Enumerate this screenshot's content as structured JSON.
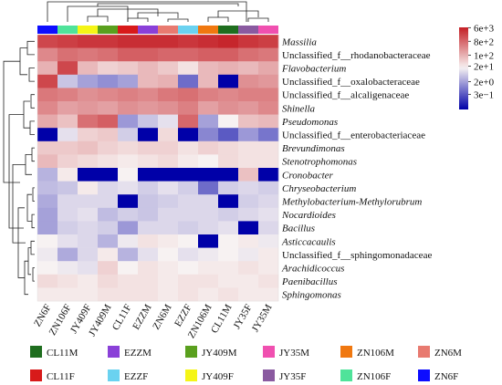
{
  "chart_data": {
    "type": "heatmap",
    "title": "",
    "xlabel": "",
    "ylabel": "",
    "columns": [
      "ZN6F",
      "ZN106F",
      "JY409F",
      "JY409M",
      "CL11F",
      "EZZM",
      "ZN6M",
      "EZZF",
      "ZN106M",
      "CL11M",
      "JY35F",
      "JY35M"
    ],
    "column_colors": [
      "#0d0dff",
      "#4fe39a",
      "#f5f516",
      "#5aa01e",
      "#d81a1a",
      "#8a40d8",
      "#e87a70",
      "#6ad2f0",
      "#f07810",
      "#1f6e1f",
      "#8a5aa0",
      "#f050b0"
    ],
    "rows": [
      "Massilia",
      "Unclassified_f__rhodanobacteraceae",
      "Flavobacterium",
      "Unclassified_f__oxalobacteraceae",
      "Unclassified_f__alcaligenaceae",
      "Shinella",
      "Pseudomonas",
      "Unclassified_f__enterobacteriaceae",
      "Brevundimonas",
      "Stenotrophomonas",
      "Cronobacter",
      "Chryseobacterium",
      "Methylobacterium-Methylorubrum",
      "Nocardioides",
      "Bacillus",
      "Asticcacaulis",
      "Unclassified_f__sphingomonadaceae",
      "Arachidicoccus",
      "Paenibacillus",
      "Sphingomonas"
    ],
    "values_log10": [
      [
        3.3,
        3.4,
        3.5,
        3.5,
        3.6,
        3.6,
        3.6,
        3.5,
        3.6,
        3.7,
        3.5,
        3.4
      ],
      [
        2.5,
        2.8,
        2.7,
        2.8,
        3.0,
        3.0,
        2.9,
        2.9,
        3.0,
        3.0,
        2.8,
        2.7
      ],
      [
        2.0,
        3.3,
        1.9,
        1.6,
        1.7,
        1.9,
        1.7,
        1.4,
        1.9,
        2.0,
        1.9,
        2.1
      ],
      [
        3.3,
        0.7,
        0.3,
        0.1,
        0.3,
        1.9,
        2.0,
        -0.3,
        1.9,
        -1.5,
        2.4,
        2.3
      ],
      [
        2.7,
        2.6,
        2.4,
        2.5,
        2.6,
        2.5,
        2.7,
        2.8,
        2.6,
        2.5,
        2.6,
        2.6
      ],
      [
        2.5,
        2.2,
        2.3,
        2.2,
        2.4,
        2.3,
        2.4,
        2.6,
        2.2,
        2.4,
        2.3,
        2.5
      ],
      [
        2.1,
        1.8,
        2.8,
        3.0,
        0.2,
        0.7,
        1.0,
        2.9,
        0.3,
        1.2,
        1.8,
        1.9
      ],
      [
        -1.5,
        1.0,
        1.6,
        1.7,
        0.8,
        -1.5,
        1.5,
        -1.5,
        0.0,
        -0.5,
        0.2,
        -0.2
      ],
      [
        1.7,
        1.7,
        1.8,
        1.6,
        1.5,
        1.6,
        1.6,
        1.4,
        1.6,
        1.5,
        1.4,
        1.4
      ],
      [
        1.9,
        1.6,
        1.5,
        1.4,
        1.3,
        1.4,
        1.5,
        1.3,
        1.2,
        1.5,
        1.4,
        1.4
      ],
      [
        0.5,
        1.3,
        -1.5,
        -1.5,
        1.2,
        -1.5,
        -1.5,
        -1.5,
        -1.5,
        -1.5,
        1.8,
        -1.5
      ],
      [
        0.6,
        0.7,
        1.3,
        0.9,
        1.0,
        0.8,
        1.0,
        0.8,
        -0.3,
        0.8,
        0.9,
        0.8
      ],
      [
        0.4,
        0.9,
        0.9,
        0.9,
        -1.5,
        0.7,
        0.8,
        0.9,
        0.9,
        -1.5,
        0.8,
        0.9
      ],
      [
        0.3,
        0.9,
        1.0,
        0.6,
        0.8,
        0.7,
        0.9,
        0.9,
        0.9,
        0.8,
        0.9,
        1.0
      ],
      [
        0.3,
        0.8,
        0.9,
        0.8,
        0.2,
        0.9,
        0.9,
        0.8,
        0.9,
        1.0,
        -1.5,
        0.9
      ],
      [
        1.2,
        1.0,
        0.9,
        0.5,
        1.1,
        1.4,
        1.3,
        1.2,
        -1.5,
        1.2,
        1.3,
        1.1
      ],
      [
        1.1,
        0.4,
        0.9,
        1.3,
        0.5,
        1.0,
        1.2,
        1.0,
        1.1,
        1.2,
        1.1,
        1.3
      ],
      [
        1.2,
        1.1,
        1.0,
        1.6,
        1.2,
        1.4,
        1.3,
        1.2,
        1.3,
        1.3,
        1.4,
        1.3
      ],
      [
        1.5,
        1.4,
        1.3,
        1.5,
        1.4,
        1.4,
        1.3,
        1.4,
        1.4,
        1.3,
        1.3,
        1.4
      ],
      [
        1.3,
        1.3,
        1.3,
        1.4,
        1.4,
        1.4,
        1.3,
        1.4,
        1.3,
        1.4,
        1.3,
        1.3
      ]
    ],
    "colorbar": {
      "ticks": [
        "6e+3",
        "8e+2",
        "1e+2",
        "2e+1",
        "2e+0",
        "3e−1"
      ],
      "tick_values_log10": [
        3.78,
        2.9,
        2.0,
        1.3,
        0.3,
        -0.52
      ],
      "range_log10": [
        -1.5,
        3.8
      ],
      "colors": {
        "low": "#0000a8",
        "mid": "#f7f2f2",
        "high": "#c41e24"
      }
    },
    "legend": [
      {
        "label": "CL11M",
        "color": "#1f6e1f"
      },
      {
        "label": "EZZM",
        "color": "#8a40d8"
      },
      {
        "label": "JY409M",
        "color": "#5aa01e"
      },
      {
        "label": "JY35M",
        "color": "#f050b0"
      },
      {
        "label": "ZN106M",
        "color": "#f07810"
      },
      {
        "label": "ZN6M",
        "color": "#e87a70"
      },
      {
        "label": "CL11F",
        "color": "#d81a1a"
      },
      {
        "label": "EZZF",
        "color": "#6ad2f0"
      },
      {
        "label": "JY409F",
        "color": "#f5f516"
      },
      {
        "label": "JY35F",
        "color": "#8a5aa0"
      },
      {
        "label": "ZN106F",
        "color": "#4fe39a"
      },
      {
        "label": "ZN6F",
        "color": "#0d0dff"
      }
    ]
  }
}
